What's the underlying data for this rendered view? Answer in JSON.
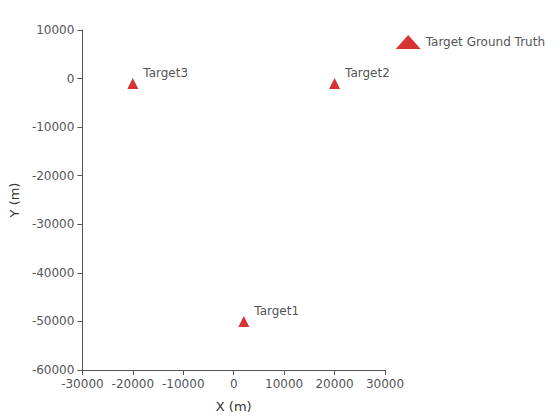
{
  "chart_data": {
    "type": "scatter",
    "xlabel": "X (m)",
    "ylabel": "Y (m)",
    "series": [
      {
        "name": "Target Ground Truth",
        "color": "#cc0000",
        "marker": "triangle",
        "x": [
          2000,
          20000,
          -20000
        ],
        "values": [
          -50000,
          -1000,
          -1000
        ],
        "labels": [
          "Target1",
          "Target2",
          "Target3"
        ]
      }
    ],
    "xlim": [
      -30000,
      30000
    ],
    "ylim": [
      -60000,
      10000
    ],
    "xticks": [
      -30000,
      -20000,
      -10000,
      0,
      10000,
      20000,
      30000
    ],
    "yticks": [
      -60000,
      -50000,
      -40000,
      -30000,
      -20000,
      -10000,
      0,
      10000
    ],
    "grid": false,
    "legend": "upper right"
  }
}
